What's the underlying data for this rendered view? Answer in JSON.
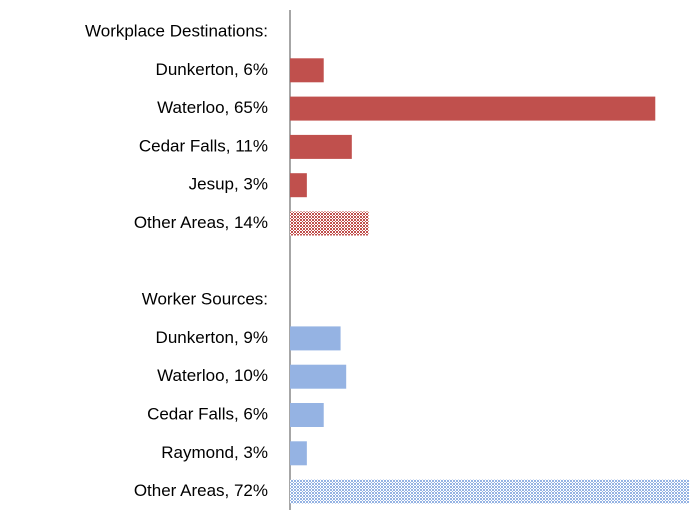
{
  "chart_data": {
    "type": "hbar",
    "categories": [
      "Workplace Destinations:",
      "Dunkerton, 6%",
      "Waterloo, 65%",
      "Cedar Falls, 11%",
      "Jesup, 3%",
      "Other Areas, 14%",
      null,
      "Worker Sources:",
      "Dunkerton, 9%",
      "Waterloo, 10%",
      "Cedar Falls, 6%",
      "Raymond, 3%",
      "Other Areas, 72%"
    ],
    "values": [
      null,
      6,
      65,
      11,
      3,
      14,
      null,
      null,
      9,
      10,
      6,
      3,
      72
    ],
    "colors": [
      null,
      "#c0504d",
      "#c0504d",
      "#c0504d",
      "#c0504d",
      "#c0504d",
      null,
      null,
      "#95b3e3",
      "#95b3e3",
      "#95b3e3",
      "#95b3e3",
      "#95b3e3"
    ],
    "hatched": [
      false,
      false,
      false,
      false,
      false,
      true,
      false,
      false,
      false,
      false,
      false,
      false,
      true
    ],
    "xlim": [
      0,
      71
    ]
  }
}
